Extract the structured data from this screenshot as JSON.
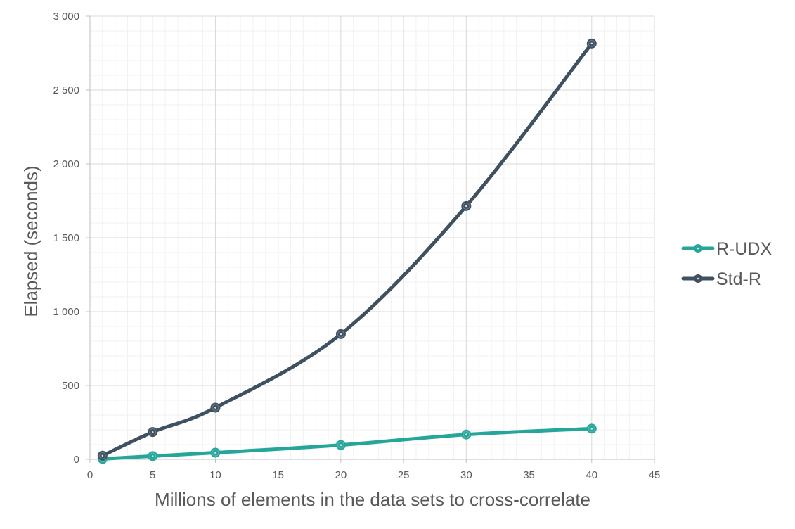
{
  "chart_data": {
    "type": "line",
    "title": "",
    "xlabel": "Millions of elements in the data sets to cross-correlate",
    "ylabel": "Elapsed (seconds)",
    "xlim": [
      0,
      45
    ],
    "ylim": [
      0,
      3000
    ],
    "x_ticks": [
      0,
      5,
      10,
      15,
      20,
      25,
      30,
      35,
      40,
      45
    ],
    "y_ticks": [
      0,
      500,
      1000,
      1500,
      2000,
      2500,
      3000
    ],
    "x_tick_labels": [
      "0",
      "5",
      "10",
      "15",
      "20",
      "25",
      "30",
      "35",
      "40",
      "45"
    ],
    "y_tick_labels": [
      "0",
      "500",
      "1 000",
      "1 500",
      "2 000",
      "2 500",
      "3 000"
    ],
    "grid": true,
    "legend_position": "right",
    "x": [
      1,
      5,
      10,
      20,
      30,
      40
    ],
    "series": [
      {
        "name": "R-UDX",
        "color": "#26A69A",
        "values": [
          3,
          22,
          45,
          97,
          168,
          208
        ]
      },
      {
        "name": "Std-R",
        "color": "#3F5161",
        "values": [
          25,
          185,
          350,
          848,
          1715,
          2815
        ]
      }
    ]
  }
}
